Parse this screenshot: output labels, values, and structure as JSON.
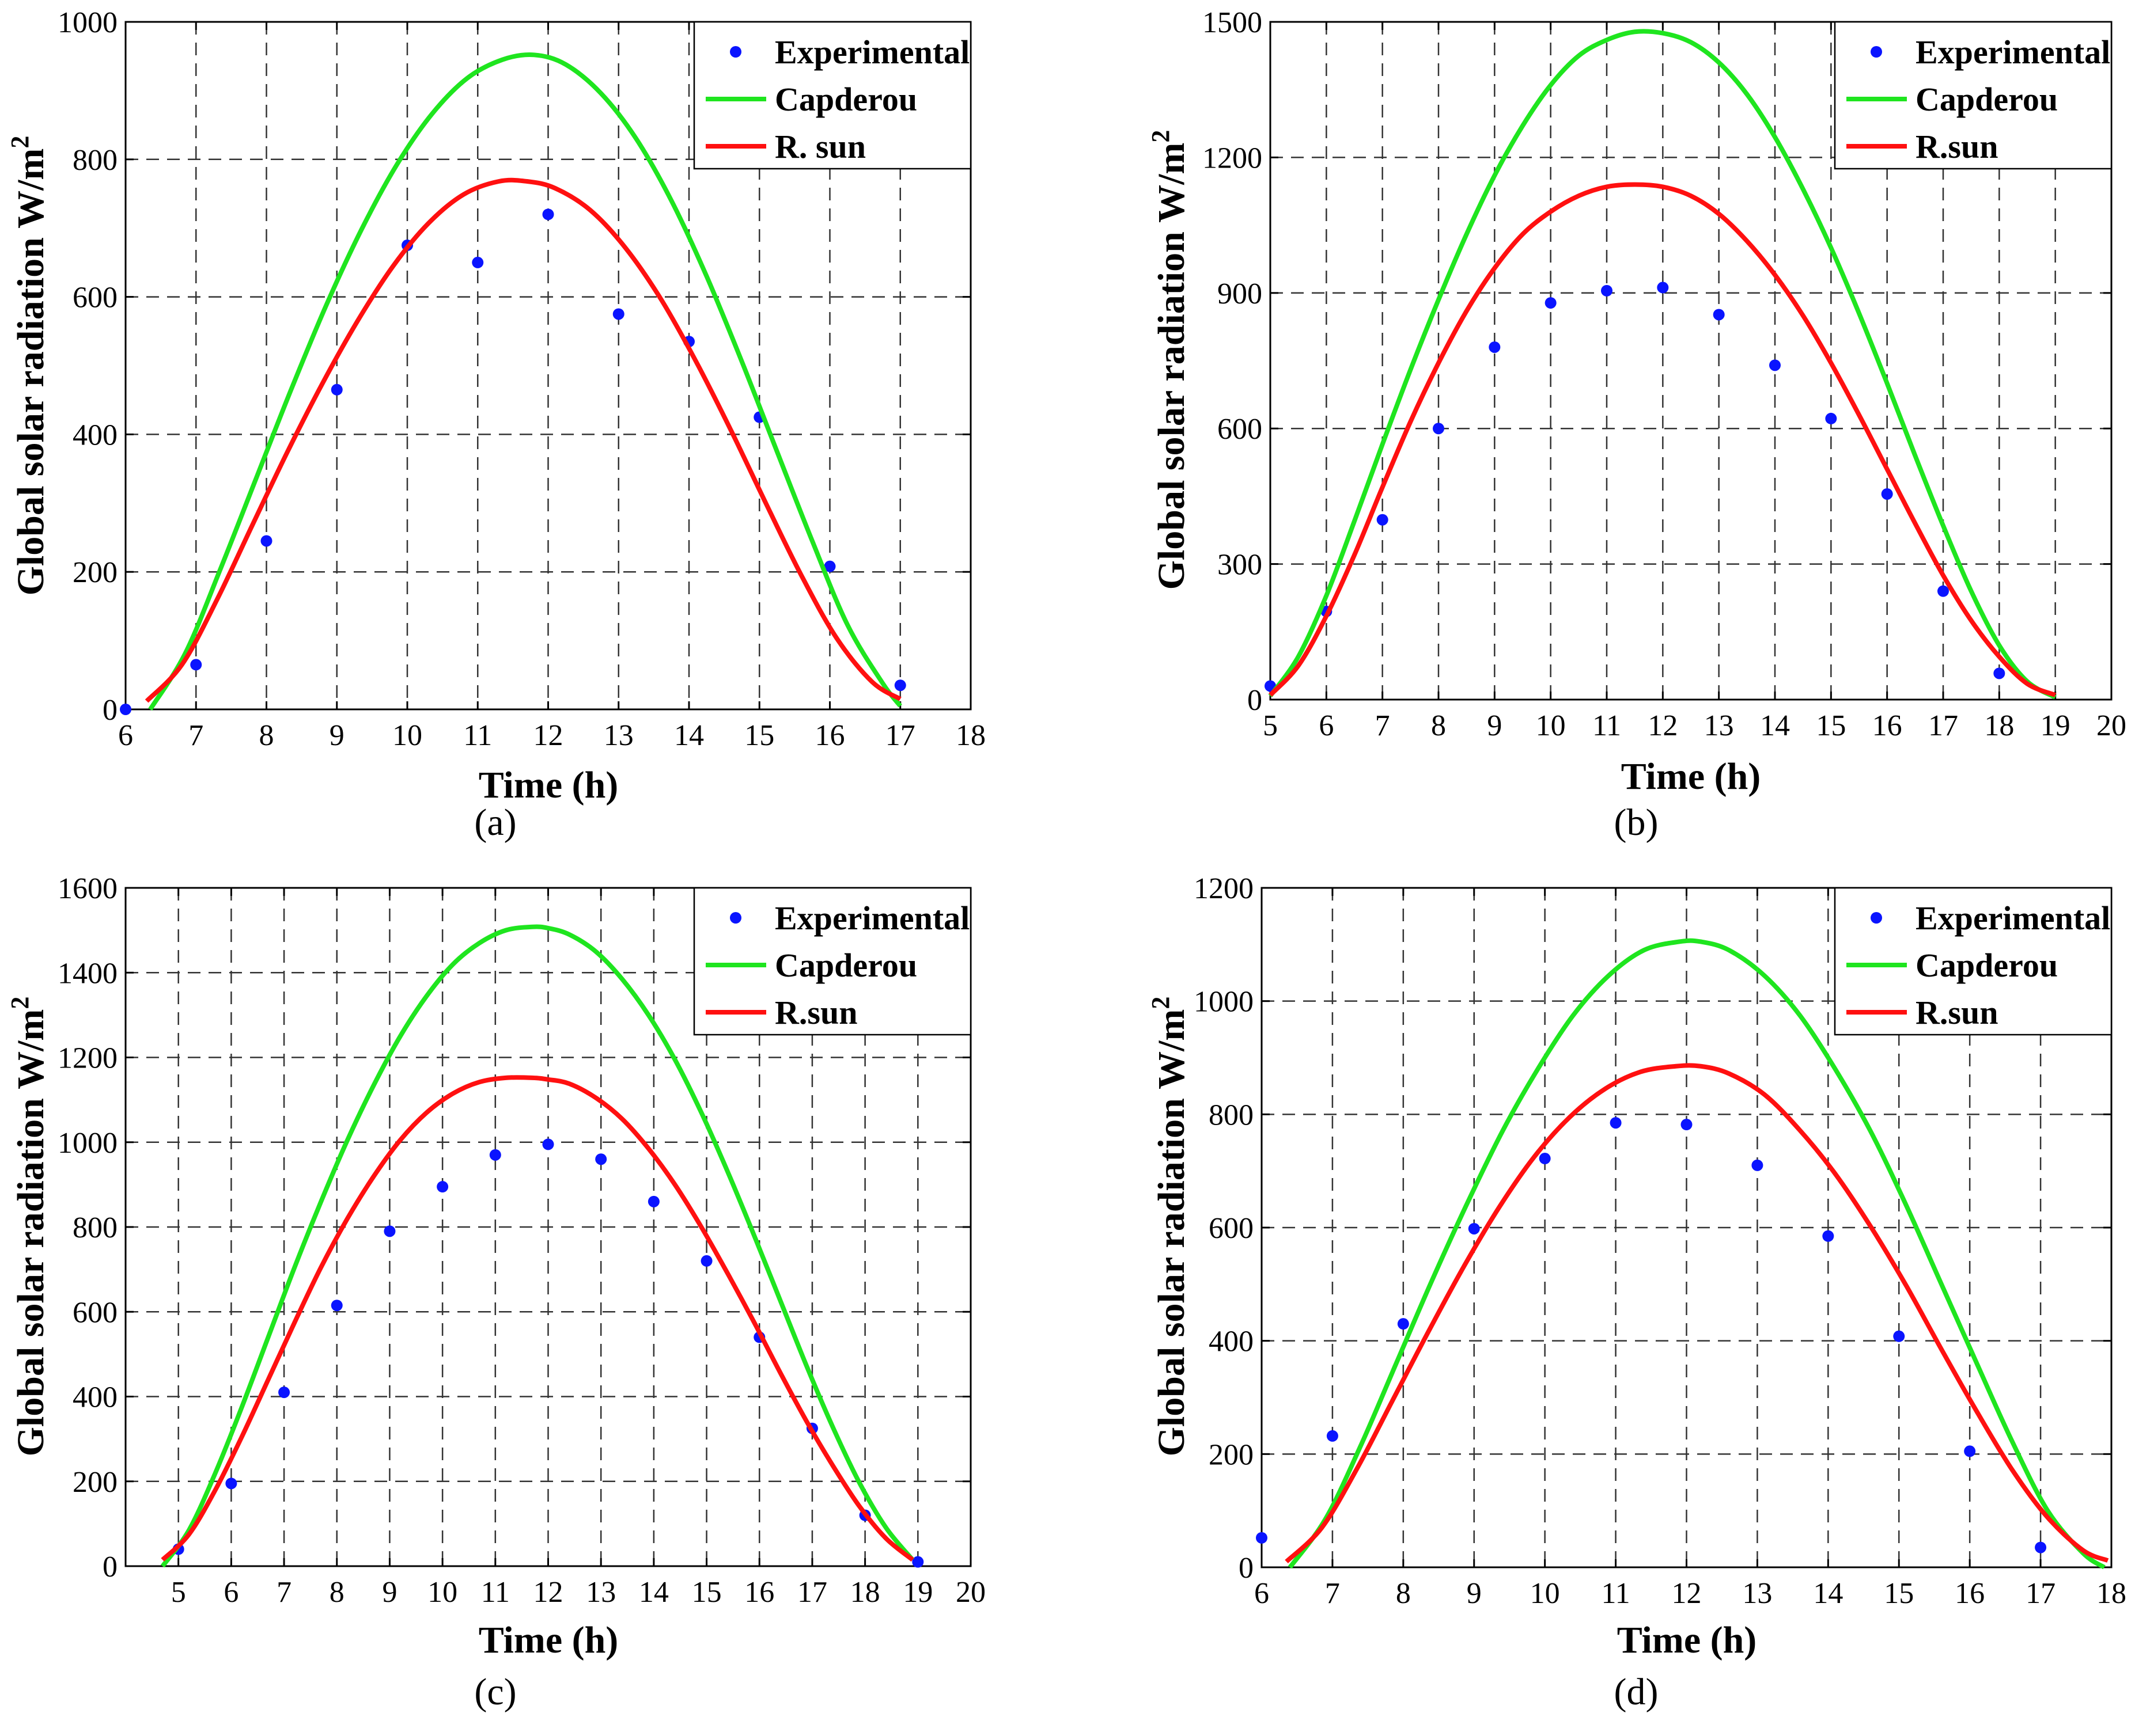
{
  "figure": {
    "panels": [
      {
        "id": "a",
        "caption": "(a)",
        "axis_label_x": "Time (h)",
        "axis_label_y_text": "Global solar radiation W/m",
        "axis_label_y_sup": "2"
      },
      {
        "id": "b",
        "caption": "(b)",
        "axis_label_x": "Time (h)",
        "axis_label_y_text": "Global solar radiation W/m",
        "axis_label_y_sup": "2"
      },
      {
        "id": "c",
        "caption": "(c)",
        "axis_label_x": "Time (h)",
        "axis_label_y_text": "Global solar radiation W/m",
        "axis_label_y_sup": "2"
      },
      {
        "id": "d",
        "caption": "(d)",
        "axis_label_x": "Time (h)",
        "axis_label_y_text": "Global solar radiation W/m",
        "axis_label_y_sup": "2"
      }
    ]
  },
  "colors": {
    "experimental": "#0a14ff",
    "capderou": "#1fe51f",
    "rsun": "#ff1010"
  },
  "chart_data": [
    {
      "type": "line",
      "title": "",
      "caption": "(a)",
      "xlabel": "Time (h)",
      "ylabel": "Global solar radiation W/m2",
      "xlim": [
        6,
        18
      ],
      "ylim": [
        0,
        1000
      ],
      "xticks": [
        6,
        7,
        8,
        9,
        10,
        11,
        12,
        13,
        14,
        15,
        16,
        17,
        18
      ],
      "yticks": [
        0,
        200,
        400,
        600,
        800,
        1000
      ],
      "grid": true,
      "legend": "top-right",
      "series": [
        {
          "name": "Experimental",
          "kind": "scatter",
          "x": [
            6,
            7,
            8,
            9,
            10,
            11,
            12,
            13,
            14,
            15,
            16,
            17
          ],
          "y": [
            0,
            65,
            245,
            465,
            675,
            650,
            720,
            575,
            535,
            425,
            208,
            35
          ]
        },
        {
          "name": "Capderou",
          "kind": "line",
          "x": [
            6.35,
            6.85,
            7.35,
            7.85,
            8.35,
            8.85,
            9.35,
            9.85,
            10.35,
            10.85,
            11.35,
            11.8,
            12.25,
            12.75,
            13.25,
            13.75,
            14.25,
            14.75,
            15.25,
            15.75,
            16.25,
            16.75,
            17.0
          ],
          "y": [
            0,
            82,
            205,
            335,
            465,
            588,
            698,
            792,
            866,
            918,
            945,
            952,
            938,
            896,
            830,
            740,
            630,
            506,
            375,
            245,
            123,
            38,
            5
          ]
        },
        {
          "name": "R. sun",
          "kind": "line",
          "x": [
            6.3,
            6.8,
            7.3,
            7.8,
            8.3,
            8.8,
            9.3,
            9.8,
            10.3,
            10.8,
            11.3,
            11.7,
            12.1,
            12.6,
            13.1,
            13.6,
            14.1,
            14.6,
            15.1,
            15.6,
            16.1,
            16.6,
            17.0
          ],
          "y": [
            12,
            65,
            160,
            268,
            375,
            475,
            566,
            645,
            707,
            749,
            768,
            768,
            758,
            726,
            671,
            597,
            506,
            405,
            298,
            194,
            103,
            40,
            15
          ]
        }
      ]
    },
    {
      "type": "line",
      "title": "",
      "caption": "(b)",
      "xlabel": "Time (h)",
      "ylabel": "Global solar radiation W/m2",
      "xlim": [
        5,
        20
      ],
      "ylim": [
        0,
        1500
      ],
      "xticks": [
        5,
        6,
        7,
        8,
        9,
        10,
        11,
        12,
        13,
        14,
        15,
        16,
        17,
        18,
        19,
        20
      ],
      "yticks": [
        0,
        300,
        600,
        900,
        1200,
        1500
      ],
      "grid": true,
      "legend": "top-right",
      "series": [
        {
          "name": "Experimental",
          "kind": "scatter",
          "x": [
            5,
            6,
            7,
            8,
            9,
            10,
            11,
            12,
            13,
            14,
            15,
            16,
            17,
            18
          ],
          "y": [
            30,
            195,
            398,
            600,
            780,
            878,
            905,
            912,
            852,
            740,
            622,
            455,
            240,
            58
          ]
        },
        {
          "name": "Capderou",
          "kind": "line",
          "x": [
            5.0,
            5.5,
            6.0,
            6.5,
            7.0,
            7.5,
            8.0,
            8.5,
            9.0,
            9.5,
            10.0,
            10.5,
            11.0,
            11.5,
            12.0,
            12.5,
            13.0,
            13.5,
            14.0,
            14.5,
            15.0,
            15.5,
            16.0,
            16.5,
            17.0,
            17.5,
            18.0,
            18.5,
            19.0
          ],
          "y": [
            8,
            95,
            230,
            395,
            565,
            730,
            885,
            1030,
            1160,
            1270,
            1360,
            1425,
            1460,
            1478,
            1475,
            1455,
            1410,
            1340,
            1245,
            1130,
            1000,
            855,
            700,
            540,
            385,
            240,
            120,
            40,
            5
          ]
        },
        {
          "name": "R.sun",
          "kind": "line",
          "x": [
            5.0,
            5.5,
            6.0,
            6.5,
            7.0,
            7.5,
            8.0,
            8.5,
            9.0,
            9.5,
            10.0,
            10.5,
            11.0,
            11.5,
            12.0,
            12.5,
            13.0,
            13.5,
            14.0,
            14.5,
            15.0,
            15.5,
            16.0,
            16.5,
            17.0,
            17.5,
            18.0,
            18.5,
            19.0
          ],
          "y": [
            10,
            75,
            185,
            320,
            470,
            615,
            745,
            860,
            955,
            1030,
            1080,
            1115,
            1135,
            1140,
            1135,
            1115,
            1075,
            1015,
            940,
            850,
            745,
            630,
            510,
            390,
            275,
            175,
            95,
            35,
            10
          ]
        }
      ]
    },
    {
      "type": "line",
      "title": "",
      "caption": "(c)",
      "xlabel": "Time (h)",
      "ylabel": "Global solar radiation W/m2",
      "xlim": [
        4,
        20
      ],
      "ylim": [
        0,
        1600
      ],
      "xticks": [
        5,
        6,
        7,
        8,
        9,
        10,
        11,
        12,
        13,
        14,
        15,
        16,
        17,
        18,
        19,
        20
      ],
      "yticks": [
        0,
        200,
        400,
        600,
        800,
        1000,
        1200,
        1400,
        1600
      ],
      "grid": true,
      "legend": "top-right",
      "series": [
        {
          "name": "Experimental",
          "kind": "scatter",
          "x": [
            5,
            6,
            7,
            8,
            9,
            10,
            11,
            12,
            13,
            14,
            15,
            16,
            17,
            18,
            19
          ],
          "y": [
            40,
            195,
            410,
            615,
            790,
            895,
            970,
            995,
            960,
            860,
            720,
            540,
            325,
            120,
            10
          ]
        },
        {
          "name": "Capderou",
          "kind": "line",
          "x": [
            4.7,
            5.2,
            5.7,
            6.2,
            6.7,
            7.2,
            7.7,
            8.2,
            8.7,
            9.2,
            9.7,
            10.2,
            10.7,
            11.2,
            11.7,
            12.0,
            12.4,
            12.9,
            13.4,
            13.9,
            14.4,
            14.9,
            15.4,
            15.9,
            16.4,
            16.9,
            17.4,
            17.9,
            18.4,
            18.9
          ],
          "y": [
            0,
            85,
            220,
            375,
            540,
            705,
            860,
            1005,
            1135,
            1250,
            1345,
            1420,
            1470,
            1500,
            1508,
            1505,
            1490,
            1450,
            1385,
            1300,
            1195,
            1070,
            930,
            780,
            625,
            470,
            325,
            195,
            90,
            15
          ]
        },
        {
          "name": "R.sun",
          "kind": "line",
          "x": [
            4.7,
            5.2,
            5.7,
            6.2,
            6.7,
            7.2,
            7.7,
            8.2,
            8.7,
            9.2,
            9.7,
            10.2,
            10.7,
            11.2,
            11.7,
            12.0,
            12.4,
            12.9,
            13.4,
            13.9,
            14.4,
            14.9,
            15.4,
            15.9,
            16.4,
            16.9,
            17.4,
            17.9,
            18.4,
            18.9
          ],
          "y": [
            15,
            75,
            180,
            305,
            440,
            575,
            705,
            820,
            920,
            1005,
            1070,
            1115,
            1142,
            1152,
            1152,
            1148,
            1138,
            1105,
            1055,
            985,
            900,
            800,
            690,
            575,
            455,
            340,
            235,
            140,
            65,
            15
          ]
        }
      ]
    },
    {
      "type": "line",
      "title": "",
      "caption": "(d)",
      "xlabel": "Time (h)",
      "ylabel": "Global solar radiation W/m2",
      "xlim": [
        6,
        18
      ],
      "ylim": [
        0,
        1200
      ],
      "xticks": [
        6,
        7,
        8,
        9,
        10,
        11,
        12,
        13,
        14,
        15,
        16,
        17,
        18
      ],
      "yticks": [
        0,
        200,
        400,
        600,
        800,
        1000,
        1200
      ],
      "grid": true,
      "legend": "top-right",
      "series": [
        {
          "name": "Experimental",
          "kind": "scatter",
          "x": [
            6,
            7,
            8,
            9,
            10,
            11,
            12,
            13,
            14,
            15,
            16,
            17
          ],
          "y": [
            52,
            232,
            430,
            598,
            722,
            785,
            782,
            710,
            585,
            408,
            205,
            35
          ]
        },
        {
          "name": "Capderou",
          "kind": "line",
          "x": [
            6.4,
            6.9,
            7.4,
            7.9,
            8.4,
            8.9,
            9.4,
            9.9,
            10.4,
            10.9,
            11.4,
            11.9,
            12.2,
            12.6,
            13.1,
            13.6,
            14.1,
            14.6,
            15.1,
            15.6,
            16.1,
            16.6,
            17.1,
            17.6,
            17.9
          ],
          "y": [
            0,
            85,
            215,
            360,
            505,
            642,
            770,
            880,
            975,
            1045,
            1090,
            1105,
            1105,
            1090,
            1045,
            975,
            880,
            770,
            640,
            500,
            360,
            222,
            100,
            25,
            0
          ]
        },
        {
          "name": "R.sun",
          "kind": "line",
          "x": [
            6.35,
            6.85,
            7.35,
            7.85,
            8.35,
            8.85,
            9.35,
            9.85,
            10.35,
            10.85,
            11.35,
            11.85,
            12.2,
            12.6,
            13.1,
            13.6,
            14.1,
            14.6,
            15.1,
            15.6,
            16.1,
            16.6,
            17.1,
            17.6,
            17.95
          ],
          "y": [
            10,
            70,
            175,
            295,
            415,
            530,
            635,
            725,
            795,
            845,
            875,
            885,
            885,
            872,
            835,
            772,
            695,
            602,
            498,
            385,
            275,
            172,
            88,
            30,
            12
          ]
        }
      ]
    }
  ]
}
